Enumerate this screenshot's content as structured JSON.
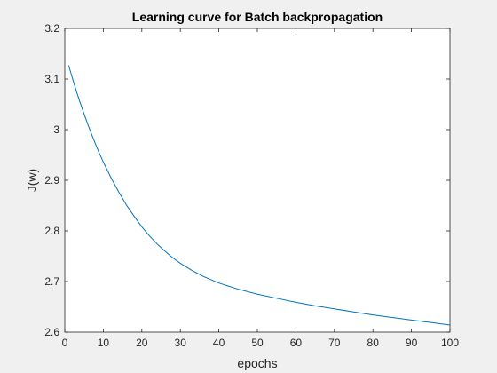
{
  "chart_data": {
    "type": "line",
    "title": "Learning curve for Batch backpropagation",
    "xlabel": "epochs",
    "ylabel": "J(w)",
    "xlim": [
      0,
      100
    ],
    "ylim": [
      2.6,
      3.2
    ],
    "xticks": [
      0,
      10,
      20,
      30,
      40,
      50,
      60,
      70,
      80,
      90,
      100
    ],
    "yticks": [
      2.6,
      2.7,
      2.8,
      2.9,
      3.0,
      3.1,
      3.2
    ],
    "xtick_labels": [
      "0",
      "10",
      "20",
      "30",
      "40",
      "50",
      "60",
      "70",
      "80",
      "90",
      "100"
    ],
    "ytick_labels": [
      "2.6",
      "2.7",
      "2.8",
      "2.9",
      "3",
      "3.1",
      "3.2"
    ],
    "grid": false,
    "box": true,
    "background_color": "#ffffff",
    "figure_color": "#f0f0f0",
    "series": [
      {
        "color": "#0072bd",
        "x": [
          1,
          2,
          3,
          4,
          5,
          6,
          7,
          8,
          9,
          10,
          12,
          14,
          16,
          18,
          20,
          22,
          24,
          26,
          28,
          30,
          33,
          36,
          40,
          45,
          50,
          55,
          60,
          65,
          70,
          75,
          80,
          85,
          90,
          95,
          100
        ],
        "y": [
          3.127,
          3.101,
          3.076,
          3.053,
          3.031,
          3.01,
          2.99,
          2.971,
          2.953,
          2.936,
          2.905,
          2.877,
          2.851,
          2.829,
          2.808,
          2.79,
          2.774,
          2.76,
          2.747,
          2.736,
          2.722,
          2.71,
          2.697,
          2.685,
          2.675,
          2.667,
          2.659,
          2.652,
          2.646,
          2.64,
          2.634,
          2.629,
          2.624,
          2.619,
          2.614
        ]
      }
    ]
  }
}
